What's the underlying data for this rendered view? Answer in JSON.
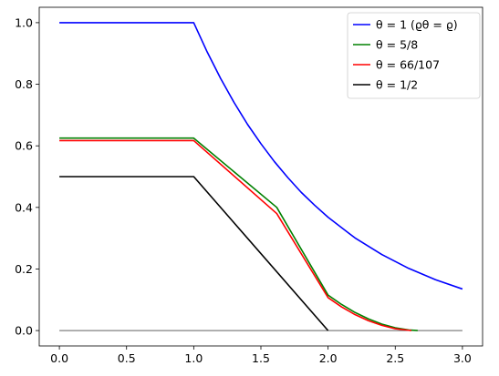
{
  "chart_data": {
    "type": "line",
    "title": "",
    "xlabel": "",
    "ylabel": "",
    "xlim": [
      -0.15,
      3.15
    ],
    "ylim": [
      -0.05,
      1.05
    ],
    "xticks": [
      0.0,
      0.5,
      1.0,
      1.5,
      2.0,
      2.5,
      3.0
    ],
    "xtick_labels": [
      "0.0",
      "0.5",
      "1.0",
      "1.5",
      "2.0",
      "2.5",
      "3.0"
    ],
    "yticks": [
      0.0,
      0.2,
      0.4,
      0.6,
      0.8,
      1.0
    ],
    "ytick_labels": [
      "0.0",
      "0.2",
      "0.4",
      "0.6",
      "0.8",
      "1.0"
    ],
    "grid": false,
    "legend_position": "top-right",
    "baseline": {
      "y": 0,
      "x": [
        0,
        3.0
      ],
      "color": "#000000"
    },
    "series": [
      {
        "name": "θ = 1   (ϱθ = ϱ)",
        "color": "#0000ff",
        "x": [
          0,
          1.0,
          1.1,
          1.2,
          1.3,
          1.4,
          1.5,
          1.6,
          1.7,
          1.8,
          1.9,
          2.0,
          2.2,
          2.4,
          2.6,
          2.8,
          3.0
        ],
        "y": [
          1.0,
          1.0,
          0.905,
          0.819,
          0.741,
          0.67,
          0.607,
          0.549,
          0.497,
          0.449,
          0.407,
          0.368,
          0.301,
          0.247,
          0.202,
          0.165,
          0.135
        ]
      },
      {
        "name": "θ = 5/8",
        "color": "#008000",
        "x": [
          0,
          1.0,
          1.618,
          2.0,
          2.1,
          2.2,
          2.3,
          2.4,
          2.5,
          2.6,
          2.667
        ],
        "y": [
          0.625,
          0.625,
          0.4,
          0.115,
          0.085,
          0.059,
          0.038,
          0.021,
          0.009,
          0.002,
          0.0
        ]
      },
      {
        "name": "θ = 66/107",
        "color": "#ff0000",
        "x": [
          0,
          1.0,
          1.618,
          2.0,
          2.1,
          2.2,
          2.3,
          2.4,
          2.5,
          2.6,
          2.62
        ],
        "y": [
          0.617,
          0.617,
          0.38,
          0.107,
          0.077,
          0.052,
          0.032,
          0.017,
          0.006,
          0.001,
          0.0
        ]
      },
      {
        "name": "θ = 1/2",
        "color": "#000000",
        "x": [
          0,
          1.0,
          2.0
        ],
        "y": [
          0.5,
          0.5,
          0.0
        ]
      }
    ]
  }
}
